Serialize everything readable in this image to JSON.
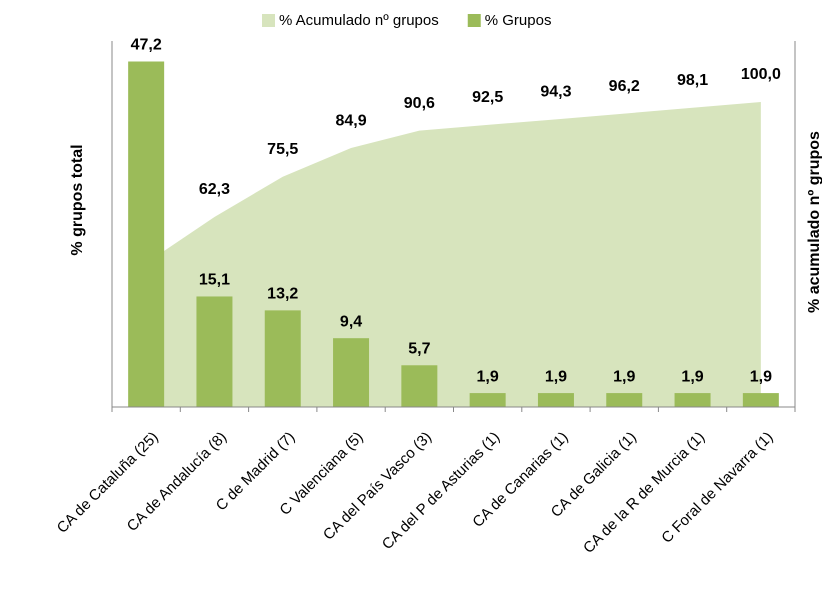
{
  "chart_data": {
    "type": "pareto",
    "y_label": "% grupos total",
    "y2_label": "% acumulado nº grupos",
    "categories": [
      "CA de Cataluña  (25)",
      "CA de Andalucía  (8)",
      "C de Madrid  (7)",
      "C Valenciana  (5)",
      "CA del País Vasco  (3)",
      "CA del P de Asturias  (1)",
      "CA de Canarias  (1)",
      "CA de Galicia  (1)",
      "CA de la R de Murcia  (1)",
      "C Foral de Navarra  (1)"
    ],
    "series": [
      {
        "name": "% Acumulado nº grupos",
        "kind": "area",
        "axis": "y2",
        "color": "#d7e4bd",
        "values": [
          47.2,
          62.3,
          75.5,
          84.9,
          90.6,
          92.5,
          94.3,
          96.2,
          98.1,
          100.0
        ],
        "value_labels": [
          "",
          "62,3",
          "75,5",
          "84,9",
          "90,6",
          "92,5",
          "94,3",
          "96,2",
          "98,1",
          "100,0"
        ]
      },
      {
        "name": "% Grupos",
        "kind": "bar",
        "color": "#9bbb59",
        "values": [
          47.2,
          15.1,
          13.2,
          9.4,
          5.7,
          1.9,
          1.9,
          1.9,
          1.9,
          1.9
        ],
        "value_labels": [
          "47,2",
          "15,1",
          "13,2",
          "9,4",
          "5,7",
          "1,9",
          "1,9",
          "1,9",
          "1,9",
          "1,9"
        ]
      }
    ],
    "ylim": [
      0,
      50
    ],
    "y2lim": [
      0,
      120
    ],
    "legend": "top"
  }
}
